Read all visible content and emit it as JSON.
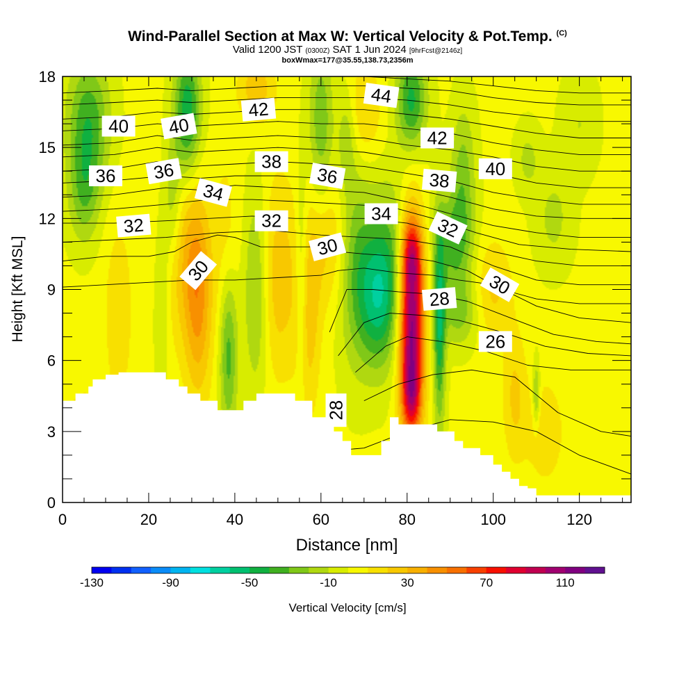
{
  "title": {
    "main": "Wind-Parallel Section at Max W: Vertical Velocity & Pot.Temp.",
    "copyright": "(C)",
    "valid_prefix": "Valid 1200 JST",
    "valid_utc": "(0300Z)",
    "valid_date": "SAT 1 Jun 2024",
    "forecast": "[9hrFcst@2146z]",
    "box_info": "boxWmax=177@35.55,138.73,2356m"
  },
  "chart_data": {
    "type": "heatmap",
    "xlabel": "Distance [nm]",
    "ylabel": "Height [Kft MSL]",
    "xlim": [
      0,
      132
    ],
    "ylim": [
      0,
      18
    ],
    "x_ticks": [
      0,
      20,
      40,
      60,
      80,
      100,
      120
    ],
    "y_ticks": [
      0,
      3,
      6,
      9,
      12,
      15,
      18
    ],
    "colorbar": {
      "label": "Vertical Velocity [cm/s]",
      "tick_labels": [
        "-130",
        "-90",
        "-50",
        "-10",
        "30",
        "70",
        "110"
      ],
      "tick_values": [
        -130,
        -90,
        -50,
        -10,
        30,
        70,
        110
      ],
      "levels": [
        -130,
        -120,
        -110,
        -100,
        -90,
        -80,
        -70,
        -60,
        -50,
        -40,
        -30,
        -20,
        -10,
        0,
        10,
        20,
        30,
        40,
        50,
        60,
        70,
        80,
        90,
        100,
        110,
        120
      ],
      "colors": [
        "#0000f0",
        "#0030f0",
        "#1160ff",
        "#0a8cf8",
        "#00b4f0",
        "#00e0e0",
        "#00d0a0",
        "#00c070",
        "#10b040",
        "#40b020",
        "#80c818",
        "#b0d810",
        "#d8ec00",
        "#f8f800",
        "#f8e000",
        "#f8c800",
        "#f8b000",
        "#f89000",
        "#f87000",
        "#f84000",
        "#f81000",
        "#e00030",
        "#c00050",
        "#a00070",
        "#800080",
        "#601090"
      ]
    },
    "terrain_profile": {
      "x": [
        0,
        3,
        3,
        6,
        6,
        7,
        7,
        10,
        10,
        13,
        13,
        24,
        24,
        27,
        27,
        29,
        29,
        32,
        32,
        36,
        36,
        42,
        42,
        45,
        45,
        54,
        54,
        58,
        58,
        63,
        63,
        65,
        65,
        67,
        67,
        74,
        74,
        76,
        76,
        78,
        78,
        87,
        87,
        91,
        91,
        93,
        93,
        97,
        97,
        100,
        100,
        102,
        102,
        104,
        104,
        106,
        106,
        108,
        108,
        110,
        110,
        114,
        114,
        117,
        117,
        121,
        121,
        132
      ],
      "y": [
        4.3,
        4.3,
        4.6,
        4.6,
        4.9,
        4.9,
        5.2,
        5.2,
        5.4,
        5.4,
        5.5,
        5.5,
        5.2,
        5.2,
        4.9,
        4.9,
        4.6,
        4.6,
        4.3,
        4.3,
        3.9,
        3.9,
        4.3,
        4.3,
        4.6,
        4.6,
        4.3,
        4.3,
        3.6,
        3.6,
        3.0,
        3.0,
        2.6,
        2.6,
        2.0,
        2.0,
        2.6,
        2.6,
        3.6,
        3.6,
        3.3,
        3.3,
        3.0,
        3.0,
        2.6,
        2.6,
        2.3,
        2.3,
        2.0,
        2.0,
        1.6,
        1.6,
        1.3,
        1.3,
        1.0,
        1.0,
        0.7,
        0.7,
        0.6,
        0.6,
        0.3,
        0.3,
        0.3,
        0.3,
        0.3,
        0.3,
        0.3,
        0.3
      ]
    },
    "w_features": [
      {
        "x": 31.5,
        "y": 8.7,
        "sx": 2.3,
        "sy": 3.0,
        "w": 40
      },
      {
        "x": 27,
        "y": 10.5,
        "sx": 3.5,
        "sy": 2.6,
        "w": 22
      },
      {
        "x": 50,
        "y": 9.5,
        "sx": 3.5,
        "sy": 3.0,
        "w": 25
      },
      {
        "x": 57,
        "y": 8.0,
        "sx": 2.0,
        "sy": 3.0,
        "w": 25
      },
      {
        "x": 62,
        "y": 11.0,
        "sx": 3.0,
        "sy": 2.0,
        "w": 22
      },
      {
        "x": 81,
        "y": 7.5,
        "sx": 2.0,
        "sy": 3.0,
        "w": 115
      },
      {
        "x": 81,
        "y": 10.5,
        "sx": 1.7,
        "sy": 1.0,
        "w": 40
      },
      {
        "x": 81,
        "y": 4.5,
        "sx": 1.5,
        "sy": 1.0,
        "w": 40
      },
      {
        "x": 105,
        "y": 4.5,
        "sx": 2.0,
        "sy": 2.0,
        "w": 20
      },
      {
        "x": 112,
        "y": 3.0,
        "sx": 3.0,
        "sy": 1.5,
        "w": 18
      },
      {
        "x": 100,
        "y": 9.0,
        "sx": 3.0,
        "sy": 1.5,
        "w": 20
      },
      {
        "x": 70,
        "y": 16.5,
        "sx": 3.0,
        "sy": 1.5,
        "w": 20
      },
      {
        "x": 45,
        "y": 17.5,
        "sx": 3.0,
        "sy": 1.0,
        "w": 25
      },
      {
        "x": 13,
        "y": 8.0,
        "sx": 2.5,
        "sy": 3.0,
        "w": 15
      },
      {
        "x": 5,
        "y": 3.5,
        "sx": 3.0,
        "sy": 1.0,
        "w": 15
      },
      {
        "x": 38,
        "y": 10.5,
        "sx": 2.0,
        "sy": 3.0,
        "w": 15
      },
      {
        "x": 6,
        "y": 16.0,
        "sx": 3.5,
        "sy": 2.0,
        "w": -40
      },
      {
        "x": 5,
        "y": 13.0,
        "sx": 2.5,
        "sy": 1.5,
        "w": -25
      },
      {
        "x": 29,
        "y": 16.5,
        "sx": 2.2,
        "sy": 2.0,
        "w": -50
      },
      {
        "x": 25.5,
        "y": 12.5,
        "sx": 1.5,
        "sy": 2.0,
        "w": -25
      },
      {
        "x": 23,
        "y": 9.0,
        "sx": 1.2,
        "sy": 2.5,
        "w": -20
      },
      {
        "x": 38.5,
        "y": 6.5,
        "sx": 1.5,
        "sy": 2.5,
        "w": -40
      },
      {
        "x": 45,
        "y": 9.0,
        "sx": 2.0,
        "sy": 3.0,
        "w": -30
      },
      {
        "x": 55.5,
        "y": 9.5,
        "sx": 1.0,
        "sy": 3.0,
        "w": -25
      },
      {
        "x": 60,
        "y": 16.0,
        "sx": 2.0,
        "sy": 2.5,
        "w": -30
      },
      {
        "x": 66,
        "y": 15.5,
        "sx": 1.5,
        "sy": 1.5,
        "w": -20
      },
      {
        "x": 68,
        "y": 10.0,
        "sx": 3.0,
        "sy": 3.0,
        "w": -30
      },
      {
        "x": 73,
        "y": 8.5,
        "sx": 3.0,
        "sy": 2.0,
        "w": -40
      },
      {
        "x": 76,
        "y": 10.0,
        "sx": 3.5,
        "sy": 2.5,
        "w": -30
      },
      {
        "x": 81,
        "y": 17.0,
        "sx": 2.5,
        "sy": 1.5,
        "w": -45
      },
      {
        "x": 87.5,
        "y": 7.5,
        "sx": 1.0,
        "sy": 3.0,
        "w": -50
      },
      {
        "x": 91,
        "y": 11.0,
        "sx": 3.0,
        "sy": 1.5,
        "w": -35
      },
      {
        "x": 93,
        "y": 14.0,
        "sx": 2.0,
        "sy": 2.0,
        "w": -25
      },
      {
        "x": 92,
        "y": 8.0,
        "sx": 3.0,
        "sy": 1.0,
        "w": -25
      },
      {
        "x": 110,
        "y": 4.5,
        "sx": 0.6,
        "sy": 1.0,
        "w": -30
      },
      {
        "x": 114,
        "y": 12.0,
        "sx": 3.0,
        "sy": 1.5,
        "w": -15
      },
      {
        "x": 108,
        "y": 14.5,
        "sx": 2.0,
        "sy": 1.0,
        "w": -15
      },
      {
        "x": 120,
        "y": 16.0,
        "sx": 3.0,
        "sy": 1.5,
        "w": -12
      }
    ],
    "theta_contours": [
      {
        "level": 24,
        "x": [
          50,
          70,
          80,
          90,
          100,
          110,
          120,
          132
        ],
        "y": [
          2.0,
          2.3,
          3.0,
          3.5,
          3.4,
          3.0,
          2.0,
          1.2
        ]
      },
      {
        "level": 25,
        "x": [
          70,
          78,
          86,
          95,
          105,
          115,
          125,
          132
        ],
        "y": [
          4.3,
          5.0,
          5.4,
          5.6,
          5.3,
          3.8,
          3.0,
          2.8
        ]
      },
      {
        "level": 26,
        "x": [
          68,
          75,
          80,
          88,
          98,
          108,
          118,
          132
        ],
        "y": [
          5.5,
          6.6,
          7.0,
          6.8,
          6.4,
          5.8,
          5.6,
          5.6
        ]
      },
      {
        "level": 27,
        "x": [
          64,
          70,
          76,
          84,
          92,
          102,
          112,
          122,
          132
        ],
        "y": [
          6.2,
          7.6,
          8.0,
          7.9,
          7.7,
          7.2,
          6.6,
          6.3,
          6.2
        ]
      },
      {
        "level": 28,
        "x": [
          62,
          66,
          72,
          78,
          86,
          94,
          104,
          114,
          124,
          132
        ],
        "y": [
          7.2,
          9.0,
          9.0,
          8.9,
          8.8,
          8.5,
          7.8,
          7.1,
          6.8,
          6.7
        ]
      },
      {
        "level": 29,
        "x": [
          0,
          10,
          20,
          30,
          40,
          50,
          60,
          64,
          70,
          78,
          86,
          92,
          100,
          110,
          120,
          132
        ],
        "y": [
          9.1,
          9.2,
          9.3,
          9.4,
          9.4,
          9.5,
          9.6,
          9.8,
          9.9,
          9.7,
          9.6,
          9.4,
          9.2,
          8.3,
          7.8,
          7.6
        ]
      },
      {
        "level": 30,
        "x": [
          0,
          10,
          20,
          26,
          30,
          36,
          40,
          46,
          52,
          58,
          64,
          70,
          78,
          86,
          94,
          102,
          110,
          120,
          132
        ],
        "y": [
          10.2,
          10.4,
          10.4,
          10.6,
          11.0,
          11.3,
          11.2,
          10.8,
          10.8,
          10.8,
          10.6,
          10.5,
          10.4,
          10.2,
          9.8,
          9.0,
          8.6,
          8.4,
          8.4
        ]
      },
      {
        "level": 31,
        "x": [
          0,
          12,
          24,
          36,
          48,
          60,
          70,
          80,
          90,
          100,
          110,
          120,
          132
        ],
        "y": [
          11.0,
          11.1,
          11.2,
          11.4,
          11.5,
          11.3,
          11.2,
          11.1,
          10.8,
          10.0,
          9.4,
          9.2,
          9.2
        ]
      },
      {
        "level": 32,
        "x": [
          0,
          12,
          24,
          34,
          44,
          54,
          62,
          70,
          80,
          90,
          100,
          110,
          120,
          132
        ],
        "y": [
          11.8,
          11.8,
          11.9,
          12.0,
          12.1,
          12.0,
          12.0,
          12.0,
          11.8,
          11.3,
          10.6,
          10.2,
          10.0,
          10.0
        ]
      },
      {
        "level": 33,
        "x": [
          0,
          12,
          24,
          34,
          44,
          56,
          66,
          76,
          86,
          96,
          106,
          118,
          132
        ],
        "y": [
          12.3,
          12.4,
          12.6,
          12.8,
          12.8,
          12.7,
          12.6,
          12.5,
          12.0,
          11.4,
          10.9,
          10.7,
          10.6
        ]
      },
      {
        "level": 34,
        "x": [
          0,
          12,
          24,
          32,
          40,
          50,
          60,
          70,
          80,
          90,
          100,
          110,
          120,
          132
        ],
        "y": [
          12.9,
          13.0,
          13.3,
          13.2,
          13.4,
          13.3,
          13.2,
          13.1,
          12.7,
          12.2,
          11.7,
          11.4,
          11.2,
          11.2
        ]
      },
      {
        "level": 35,
        "x": [
          0,
          12,
          24,
          32,
          40,
          50,
          60,
          70,
          80,
          90,
          100,
          110,
          120,
          132
        ],
        "y": [
          13.5,
          13.6,
          13.8,
          13.7,
          13.8,
          13.8,
          13.7,
          13.6,
          13.3,
          12.9,
          12.4,
          12.1,
          12.0,
          12.0
        ]
      },
      {
        "level": 36,
        "x": [
          0,
          12,
          22,
          30,
          40,
          50,
          60,
          70,
          80,
          90,
          100,
          110,
          120,
          132
        ],
        "y": [
          14.0,
          14.1,
          14.4,
          14.2,
          14.3,
          14.4,
          14.3,
          14.2,
          13.9,
          13.6,
          13.1,
          12.8,
          12.6,
          12.6
        ]
      },
      {
        "level": 37,
        "x": [
          0,
          12,
          22,
          30,
          40,
          50,
          60,
          70,
          80,
          90,
          100,
          110,
          120,
          132
        ],
        "y": [
          14.6,
          14.7,
          15.0,
          14.8,
          14.9,
          15.0,
          14.9,
          14.8,
          14.5,
          14.3,
          13.9,
          13.5,
          13.3,
          13.3
        ]
      },
      {
        "level": 38,
        "x": [
          0,
          12,
          22,
          30,
          40,
          50,
          60,
          70,
          80,
          90,
          100,
          110,
          120,
          132
        ],
        "y": [
          15.1,
          15.2,
          15.5,
          15.3,
          15.4,
          15.5,
          15.4,
          15.4,
          15.1,
          14.9,
          14.6,
          14.2,
          14.0,
          14.0
        ]
      },
      {
        "level": 39,
        "x": [
          0,
          12,
          22,
          30,
          40,
          50,
          60,
          70,
          80,
          90,
          100,
          110,
          120,
          132
        ],
        "y": [
          15.7,
          15.8,
          16.0,
          15.9,
          16.0,
          16.1,
          16.0,
          16.0,
          15.8,
          15.6,
          15.2,
          14.9,
          14.7,
          14.7
        ]
      },
      {
        "level": 40,
        "x": [
          0,
          12,
          22,
          30,
          40,
          50,
          60,
          70,
          80,
          90,
          100,
          110,
          120,
          132
        ],
        "y": [
          16.2,
          16.3,
          16.5,
          16.4,
          16.5,
          16.6,
          16.6,
          16.6,
          16.4,
          16.2,
          15.9,
          15.6,
          15.4,
          15.4
        ]
      },
      {
        "level": 41,
        "x": [
          0,
          12,
          22,
          30,
          40,
          50,
          60,
          70,
          80,
          90,
          100,
          110,
          120,
          132
        ],
        "y": [
          16.8,
          16.9,
          17.0,
          16.9,
          17.0,
          17.1,
          17.1,
          17.1,
          17.0,
          16.8,
          16.5,
          16.3,
          16.1,
          16.1
        ]
      },
      {
        "level": 42,
        "x": [
          0,
          12,
          22,
          30,
          40,
          50,
          60,
          70,
          80,
          90,
          100,
          110,
          120,
          132
        ],
        "y": [
          17.3,
          17.4,
          17.5,
          17.4,
          17.5,
          17.6,
          17.6,
          17.6,
          17.5,
          17.4,
          17.1,
          16.9,
          16.8,
          16.8
        ]
      },
      {
        "level": 43,
        "x": [
          60,
          70,
          80,
          90,
          100,
          110,
          120,
          132
        ],
        "y": [
          18.0,
          18.0,
          17.9,
          17.8,
          17.6,
          17.4,
          17.3,
          17.3
        ]
      }
    ],
    "contour_labels": [
      {
        "text": "40",
        "x": 13,
        "y": 15.9,
        "rot": 0
      },
      {
        "text": "40",
        "x": 27,
        "y": 15.9,
        "rot": -10
      },
      {
        "text": "42",
        "x": 45.5,
        "y": 16.6,
        "rot": -5
      },
      {
        "text": "44",
        "x": 74,
        "y": 17.2,
        "rot": 8
      },
      {
        "text": "42",
        "x": 87,
        "y": 15.4,
        "rot": 0
      },
      {
        "text": "36",
        "x": 10,
        "y": 13.8,
        "rot": 0
      },
      {
        "text": "36",
        "x": 23.5,
        "y": 14.0,
        "rot": -10
      },
      {
        "text": "38",
        "x": 48.5,
        "y": 14.4,
        "rot": 0
      },
      {
        "text": "36",
        "x": 61.5,
        "y": 13.8,
        "rot": 10
      },
      {
        "text": "38",
        "x": 87.5,
        "y": 13.6,
        "rot": 5
      },
      {
        "text": "40",
        "x": 100.5,
        "y": 14.1,
        "rot": 0
      },
      {
        "text": "34",
        "x": 35,
        "y": 13.1,
        "rot": 15
      },
      {
        "text": "34",
        "x": 74,
        "y": 12.2,
        "rot": 0
      },
      {
        "text": "32",
        "x": 16.5,
        "y": 11.7,
        "rot": -5
      },
      {
        "text": "32",
        "x": 48.5,
        "y": 11.9,
        "rot": 0
      },
      {
        "text": "32",
        "x": 89.5,
        "y": 11.6,
        "rot": 25
      },
      {
        "text": "30",
        "x": 61.5,
        "y": 10.8,
        "rot": -15
      },
      {
        "text": "30",
        "x": 31.5,
        "y": 9.8,
        "rot": -50
      },
      {
        "text": "30",
        "x": 101.5,
        "y": 9.2,
        "rot": 30
      },
      {
        "text": "28",
        "x": 87.5,
        "y": 8.6,
        "rot": -5
      },
      {
        "text": "26",
        "x": 100.5,
        "y": 6.8,
        "rot": 0
      },
      {
        "text": "28",
        "x": 63.5,
        "y": 3.9,
        "rot": -90
      }
    ]
  }
}
